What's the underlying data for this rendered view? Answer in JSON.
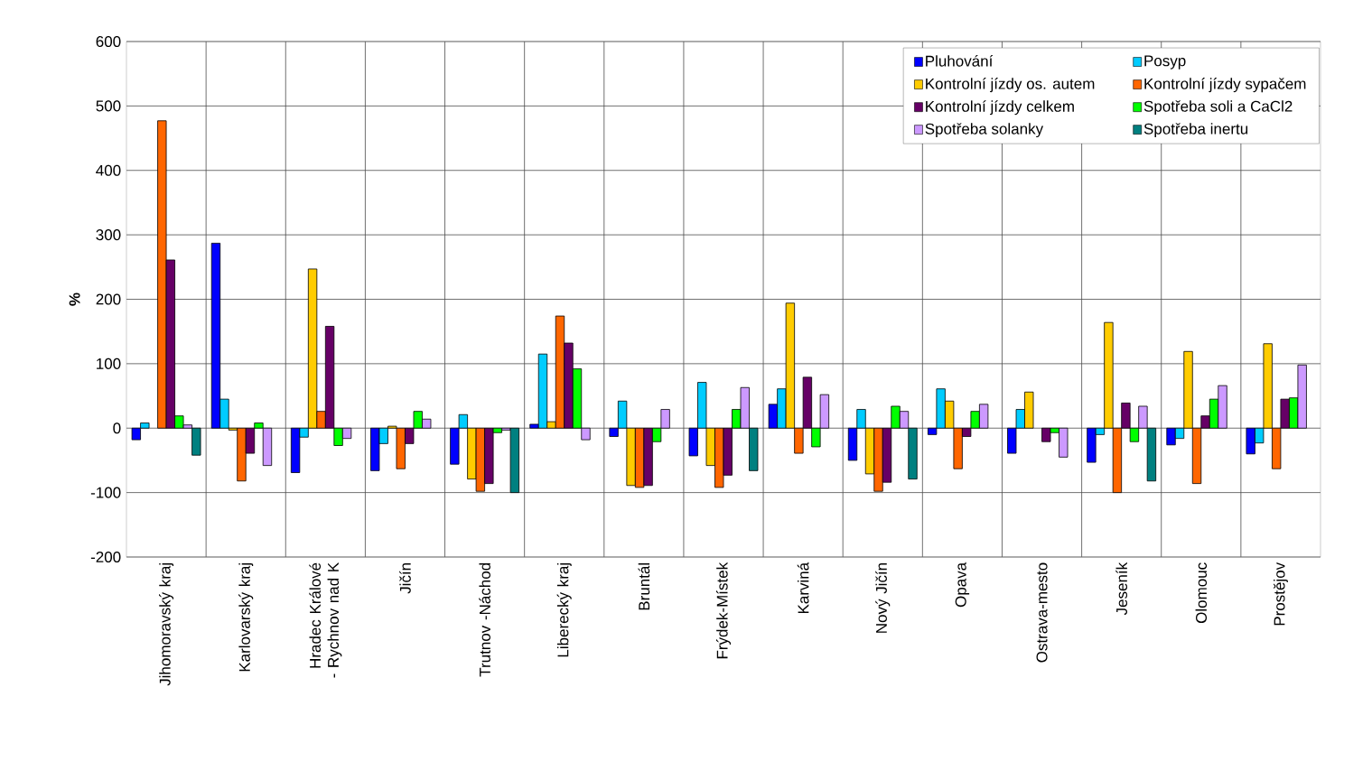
{
  "chart_data": {
    "type": "bar",
    "ylabel": "%",
    "categories": [
      "Jihomoravský kraj",
      "Karlovarský kraj",
      "Hradec Králové - Rychnov nad K",
      "Jičín",
      "Trutnov -Náchod",
      "Liberecký kraj",
      "Bruntál",
      "Frýdek-Místek",
      "Karviná",
      "Nový Jičín",
      "Opava",
      "Ostrava-mesto",
      "Jeseník",
      "Olomouc",
      "Prostějov"
    ],
    "series": [
      {
        "name": "Pluhování",
        "color": "#0000ff",
        "values": [
          -18,
          287,
          -69,
          -66,
          -56,
          6,
          -13,
          -43,
          37,
          -50,
          -10,
          -39,
          -53,
          -26,
          -40
        ]
      },
      {
        "name": "Posyp",
        "color": "#00ccff",
        "values": [
          8,
          45,
          -14,
          -24,
          21,
          115,
          42,
          71,
          61,
          29,
          61,
          29,
          -10,
          -16,
          -23
        ]
      },
      {
        "name": "Kontrolní jízdy os. autem",
        "color": "#ffcc00",
        "values": [
          null,
          -3,
          247,
          3,
          -79,
          10,
          -89,
          -58,
          194,
          -71,
          42,
          56,
          164,
          119,
          131
        ]
      },
      {
        "name": "Kontrolní jízdy sypačem",
        "color": "#ff6600",
        "values": [
          477,
          -82,
          26,
          -63,
          -98,
          174,
          -92,
          -92,
          -39,
          -98,
          -63,
          null,
          -100,
          -86,
          -63
        ]
      },
      {
        "name": "Kontrolní jízdy celkem",
        "color": "#660066",
        "values": [
          261,
          -39,
          158,
          -24,
          -86,
          132,
          -89,
          -73,
          79,
          -84,
          -13,
          -21,
          39,
          19,
          45
        ]
      },
      {
        "name": "Spotřeba soli a CaCl2",
        "color": "#00ff00",
        "values": [
          19,
          8,
          -27,
          26,
          -7,
          92,
          -21,
          29,
          -29,
          34,
          26,
          -7,
          -21,
          45,
          47
        ]
      },
      {
        "name": "Spotřeba solanky",
        "color": "#cc99ff",
        "values": [
          5,
          -58,
          -16,
          14,
          -3,
          -18,
          29,
          63,
          52,
          26,
          37,
          -45,
          34,
          66,
          98
        ]
      },
      {
        "name": "Spotřeba inertu",
        "color": "#008080",
        "values": [
          -42,
          null,
          null,
          null,
          -100,
          null,
          null,
          -66,
          null,
          -79,
          null,
          null,
          -82,
          null,
          null
        ]
      }
    ],
    "ylim": [
      -200,
      600
    ],
    "yticks": [
      -200,
      -100,
      0,
      100,
      200,
      300,
      400,
      500,
      600
    ],
    "grid": true,
    "legend": "top right"
  }
}
